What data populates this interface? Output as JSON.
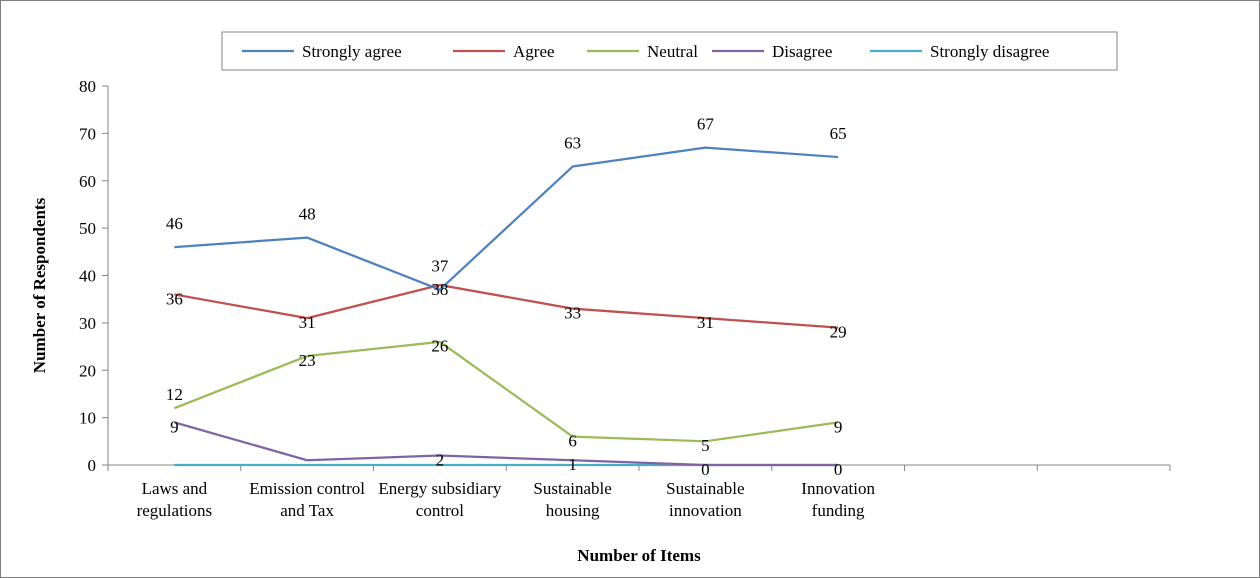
{
  "chart_data": {
    "type": "line",
    "title": "",
    "xlabel": "Number of Items",
    "ylabel": "Number of Respondents",
    "ylim": [
      0,
      80
    ],
    "yticks": [
      0,
      10,
      20,
      30,
      40,
      50,
      60,
      70,
      80
    ],
    "grid": false,
    "legend_position": "top",
    "categories": [
      [
        "Laws and",
        "regulations"
      ],
      [
        "Emission control",
        "and Tax"
      ],
      [
        "Energy subsidiary",
        "control"
      ],
      [
        "Sustainable",
        "housing"
      ],
      [
        "Sustainable",
        "innovation"
      ],
      [
        "Innovation",
        "funding"
      ]
    ],
    "series": [
      {
        "name": "Strongly agree",
        "color": "#4f81bd",
        "values": [
          46,
          48,
          37,
          63,
          67,
          65
        ],
        "labels": [
          "46",
          "48",
          "37",
          "63",
          "67",
          "65"
        ]
      },
      {
        "name": "Agree",
        "color": "#c0504d",
        "values": [
          36,
          31,
          38,
          33,
          31,
          29
        ],
        "labels": [
          "36",
          "31",
          "38",
          "33",
          "31",
          "29"
        ]
      },
      {
        "name": "Neutral",
        "color": "#9bbb59",
        "values": [
          12,
          23,
          26,
          6,
          5,
          9
        ],
        "labels": [
          "12",
          "23",
          "26",
          "6",
          "5",
          "9"
        ]
      },
      {
        "name": "Disagree",
        "color": "#8064a2",
        "values": [
          9,
          1,
          2,
          1,
          0,
          0
        ],
        "labels": [
          "9",
          "",
          "2",
          "1",
          "0",
          "0"
        ]
      },
      {
        "name": "Strongly disagree",
        "color": "#4bacc6",
        "values": [
          0,
          0,
          0,
          0,
          0,
          0
        ],
        "labels": [
          "",
          "",
          "",
          "",
          "",
          ""
        ]
      }
    ]
  }
}
